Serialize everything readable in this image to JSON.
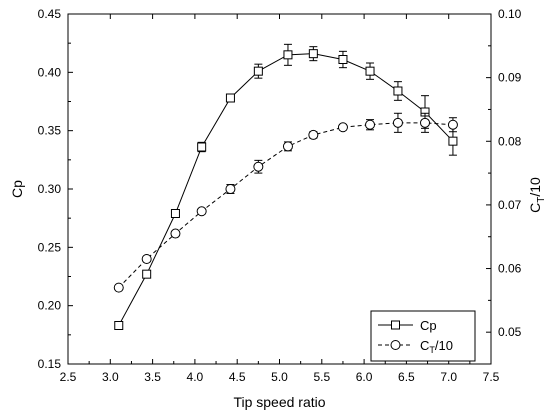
{
  "chart_data": {
    "type": "line",
    "xlabel": "Tip speed ratio",
    "ylabel": "Cp",
    "y2label_main": "C",
    "y2label_sub": "T",
    "y2label_tail": "/10",
    "xlim": [
      2.5,
      7.5
    ],
    "ylim": [
      0.15,
      0.45
    ],
    "y2lim": [
      0.045,
      0.1
    ],
    "xticks": [
      "2.5",
      "3.0",
      "3.5",
      "4.0",
      "4.5",
      "5.0",
      "5.5",
      "6.0",
      "6.5",
      "7.0",
      "7.5"
    ],
    "yticks": [
      "0.15",
      "0.20",
      "0.25",
      "0.30",
      "0.35",
      "0.40",
      "0.45"
    ],
    "y2ticks": [
      "0.05",
      "0.06",
      "0.07",
      "0.08",
      "0.09",
      "0.10"
    ],
    "legend_position": "bottom-right",
    "series": [
      {
        "name": "Cp",
        "axis": "left",
        "marker": "square",
        "line": "solid",
        "x": [
          3.1,
          3.43,
          3.77,
          4.08,
          4.42,
          4.75,
          5.1,
          5.4,
          5.75,
          6.07,
          6.4,
          6.72,
          7.05
        ],
        "y": [
          0.183,
          0.227,
          0.279,
          0.336,
          0.378,
          0.401,
          0.415,
          0.416,
          0.411,
          0.401,
          0.384,
          0.366,
          0.341
        ],
        "err": [
          0.002,
          0.002,
          0.002,
          0.004,
          0.002,
          0.006,
          0.009,
          0.006,
          0.007,
          0.007,
          0.008,
          0.014,
          0.012
        ]
      },
      {
        "name_main": "C",
        "name_sub": "T",
        "name_tail": "/10",
        "axis": "right",
        "marker": "circle",
        "line": "dashed",
        "x": [
          3.1,
          3.43,
          3.77,
          4.08,
          4.42,
          4.75,
          5.1,
          5.4,
          5.75,
          6.07,
          6.4,
          6.72,
          7.05
        ],
        "y": [
          0.057,
          0.0615,
          0.0655,
          0.069,
          0.0725,
          0.076,
          0.0792,
          0.081,
          0.0822,
          0.0826,
          0.0829,
          0.0829,
          0.0826
        ],
        "err": [
          0.0003,
          0.0004,
          0.0004,
          0.0004,
          0.0007,
          0.001,
          0.0007,
          0.0005,
          0.0004,
          0.0008,
          0.0015,
          0.0015,
          0.0011
        ]
      }
    ]
  }
}
